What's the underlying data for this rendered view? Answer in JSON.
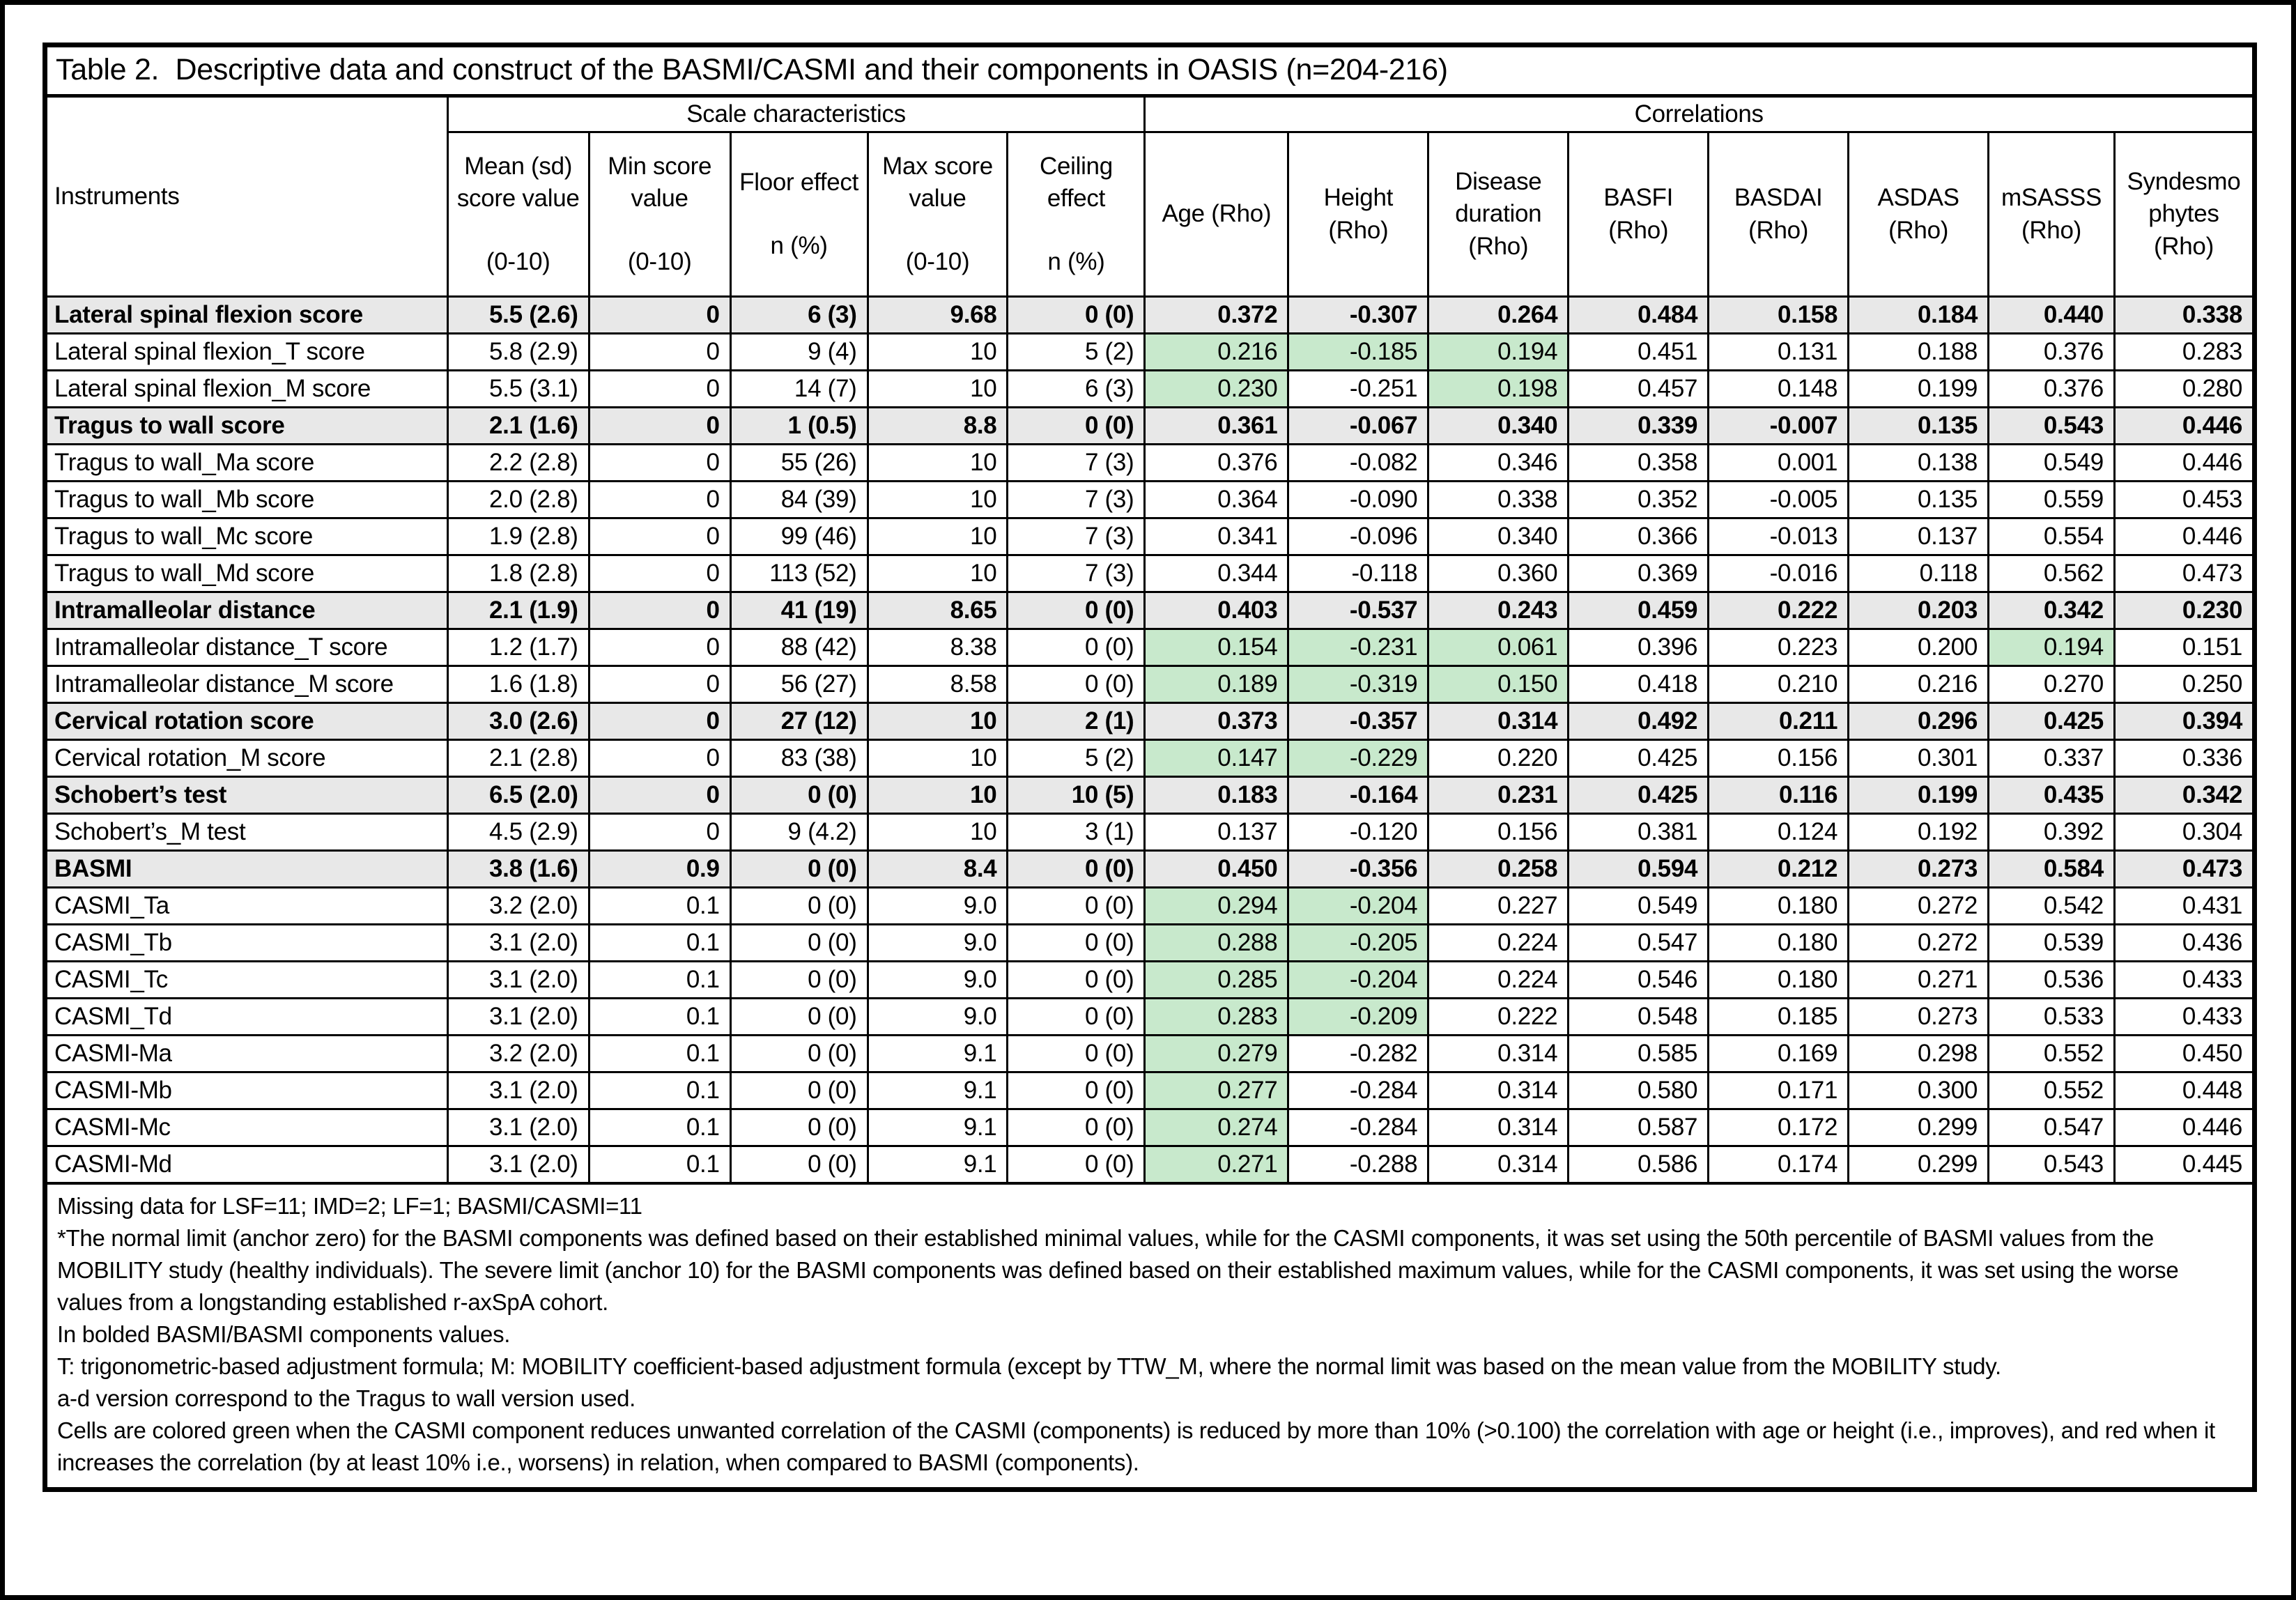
{
  "title": "Table 2.  Descriptive data and construct of the BASMI/CASMI and their components in OASIS (n=204-216)",
  "colors": {
    "improved_cell_green": "#c8e9cc",
    "bold_row_gray": "#e8e8e8",
    "border_black": "#000000"
  },
  "header": {
    "instruments": "Instruments",
    "groups": [
      {
        "label": "Scale characteristics",
        "span": 5
      },
      {
        "label": "Correlations",
        "span": 8
      }
    ],
    "columns": [
      {
        "label": "Mean (sd) score value",
        "sub": "(0-10)"
      },
      {
        "label": "Min score value",
        "sub": "(0-10)"
      },
      {
        "label": "Floor effect",
        "sub": "n (%)"
      },
      {
        "label": "Max score value",
        "sub": "(0-10)"
      },
      {
        "label": "Ceiling effect",
        "sub": "n (%)"
      },
      {
        "label": "Age (Rho)",
        "sub": ""
      },
      {
        "label": "Height (Rho)",
        "sub": ""
      },
      {
        "label": "Disease duration (Rho)",
        "sub": ""
      },
      {
        "label": "BASFI (Rho)",
        "sub": ""
      },
      {
        "label": "BASDAI (Rho)",
        "sub": ""
      },
      {
        "label": "ASDAS (Rho)",
        "sub": ""
      },
      {
        "label": "mSASSS (Rho)",
        "sub": ""
      },
      {
        "label": "Syndesmo phytes (Rho)",
        "sub": ""
      }
    ]
  },
  "rows": [
    {
      "label": "Lateral spinal flexion score",
      "bold": true,
      "green": [],
      "cells": [
        "5.5 (2.6)",
        "0",
        "6 (3)",
        "9.68",
        "0 (0)",
        "0.372",
        "-0.307",
        "0.264",
        "0.484",
        "0.158",
        "0.184",
        "0.440",
        "0.338"
      ]
    },
    {
      "label": "Lateral spinal flexion_T score",
      "bold": false,
      "green": [
        5,
        6,
        7
      ],
      "cells": [
        "5.8 (2.9)",
        "0",
        "9 (4)",
        "10",
        "5 (2)",
        "0.216",
        "-0.185",
        "0.194",
        "0.451",
        "0.131",
        "0.188",
        "0.376",
        "0.283"
      ]
    },
    {
      "label": "Lateral spinal flexion_M score",
      "bold": false,
      "green": [
        5,
        7
      ],
      "cells": [
        "5.5 (3.1)",
        "0",
        "14 (7)",
        "10",
        "6 (3)",
        "0.230",
        "-0.251",
        "0.198",
        "0.457",
        "0.148",
        "0.199",
        "0.376",
        "0.280"
      ]
    },
    {
      "label": "Tragus to wall score",
      "bold": true,
      "green": [],
      "cells": [
        "2.1 (1.6)",
        "0",
        "1 (0.5)",
        "8.8",
        "0 (0)",
        "0.361",
        "-0.067",
        "0.340",
        "0.339",
        "-0.007",
        "0.135",
        "0.543",
        "0.446"
      ]
    },
    {
      "label": "Tragus to wall_Ma score",
      "bold": false,
      "green": [],
      "cells": [
        "2.2 (2.8)",
        "0",
        "55 (26)",
        "10",
        "7 (3)",
        "0.376",
        "-0.082",
        "0.346",
        "0.358",
        "0.001",
        "0.138",
        "0.549",
        "0.446"
      ]
    },
    {
      "label": "Tragus to wall_Mb score",
      "bold": false,
      "green": [],
      "cells": [
        "2.0 (2.8)",
        "0",
        "84 (39)",
        "10",
        "7 (3)",
        "0.364",
        "-0.090",
        "0.338",
        "0.352",
        "-0.005",
        "0.135",
        "0.559",
        "0.453"
      ]
    },
    {
      "label": "Tragus to wall_Mc score",
      "bold": false,
      "green": [],
      "cells": [
        "1.9 (2.8)",
        "0",
        "99 (46)",
        "10",
        "7 (3)",
        "0.341",
        "-0.096",
        "0.340",
        "0.366",
        "-0.013",
        "0.137",
        "0.554",
        "0.446"
      ]
    },
    {
      "label": "Tragus to wall_Md score",
      "bold": false,
      "green": [],
      "cells": [
        "1.8 (2.8)",
        "0",
        "113 (52)",
        "10",
        "7 (3)",
        "0.344",
        "-0.118",
        "0.360",
        "0.369",
        "-0.016",
        "0.118",
        "0.562",
        "0.473"
      ]
    },
    {
      "label": "Intramalleolar distance",
      "bold": true,
      "green": [],
      "cells": [
        "2.1 (1.9)",
        "0",
        "41 (19)",
        "8.65",
        "0 (0)",
        "0.403",
        "-0.537",
        "0.243",
        "0.459",
        "0.222",
        "0.203",
        "0.342",
        "0.230"
      ]
    },
    {
      "label": "Intramalleolar distance_T score",
      "bold": false,
      "green": [
        5,
        6,
        7,
        11
      ],
      "cells": [
        "1.2 (1.7)",
        "0",
        "88 (42)",
        "8.38",
        "0 (0)",
        "0.154",
        "-0.231",
        "0.061",
        "0.396",
        "0.223",
        "0.200",
        "0.194",
        "0.151"
      ]
    },
    {
      "label": "Intramalleolar distance_M score",
      "bold": false,
      "green": [
        5,
        6,
        7
      ],
      "cells": [
        "1.6 (1.8)",
        "0",
        "56 (27)",
        "8.58",
        "0 (0)",
        "0.189",
        "-0.319",
        "0.150",
        "0.418",
        "0.210",
        "0.216",
        "0.270",
        "0.250"
      ]
    },
    {
      "label": "Cervical rotation score",
      "bold": true,
      "green": [],
      "cells": [
        "3.0 (2.6)",
        "0",
        "27 (12)",
        "10",
        "2 (1)",
        "0.373",
        "-0.357",
        "0.314",
        "0.492",
        "0.211",
        "0.296",
        "0.425",
        "0.394"
      ]
    },
    {
      "label": "Cervical rotation_M score",
      "bold": false,
      "green": [
        5,
        6
      ],
      "cells": [
        "2.1 (2.8)",
        "0",
        "83 (38)",
        "10",
        "5 (2)",
        "0.147",
        "-0.229",
        "0.220",
        "0.425",
        "0.156",
        "0.301",
        "0.337",
        "0.336"
      ]
    },
    {
      "label": "Schobert’s test",
      "bold": true,
      "green": [],
      "cells": [
        "6.5 (2.0)",
        "0",
        "0 (0)",
        "10",
        "10 (5)",
        "0.183",
        "-0.164",
        "0.231",
        "0.425",
        "0.116",
        "0.199",
        "0.435",
        "0.342"
      ]
    },
    {
      "label": "Schobert’s_M  test",
      "bold": false,
      "green": [],
      "cells": [
        "4.5 (2.9)",
        "0",
        "9 (4.2)",
        "10",
        "3 (1)",
        "0.137",
        "-0.120",
        "0.156",
        "0.381",
        "0.124",
        "0.192",
        "0.392",
        "0.304"
      ]
    },
    {
      "label": "BASMI",
      "bold": true,
      "green": [],
      "cells": [
        "3.8 (1.6)",
        "0.9",
        "0 (0)",
        "8.4",
        "0 (0)",
        "0.450",
        "-0.356",
        "0.258",
        "0.594",
        "0.212",
        "0.273",
        "0.584",
        "0.473"
      ]
    },
    {
      "label": "CASMI_Ta",
      "bold": false,
      "green": [
        5,
        6
      ],
      "cells": [
        "3.2 (2.0)",
        "0.1",
        "0 (0)",
        "9.0",
        "0 (0)",
        "0.294",
        "-0.204",
        "0.227",
        "0.549",
        "0.180",
        "0.272",
        "0.542",
        "0.431"
      ]
    },
    {
      "label": "CASMI_Tb",
      "bold": false,
      "green": [
        5,
        6
      ],
      "cells": [
        "3.1 (2.0)",
        "0.1",
        "0 (0)",
        "9.0",
        "0 (0)",
        "0.288",
        "-0.205",
        "0.224",
        "0.547",
        "0.180",
        "0.272",
        "0.539",
        "0.436"
      ]
    },
    {
      "label": "CASMI_Tc",
      "bold": false,
      "green": [
        5,
        6
      ],
      "cells": [
        "3.1 (2.0)",
        "0.1",
        "0 (0)",
        "9.0",
        "0 (0)",
        "0.285",
        "-0.204",
        "0.224",
        "0.546",
        "0.180",
        "0.271",
        "0.536",
        "0.433"
      ]
    },
    {
      "label": "CASMI_Td",
      "bold": false,
      "green": [
        5,
        6
      ],
      "cells": [
        "3.1 (2.0)",
        "0.1",
        "0 (0)",
        "9.0",
        "0 (0)",
        "0.283",
        "-0.209",
        "0.222",
        "0.548",
        "0.185",
        "0.273",
        "0.533",
        "0.433"
      ]
    },
    {
      "label": "CASMI-Ma",
      "bold": false,
      "green": [
        5
      ],
      "cells": [
        "3.2 (2.0)",
        "0.1",
        "0 (0)",
        "9.1",
        "0 (0)",
        "0.279",
        "-0.282",
        "0.314",
        "0.585",
        "0.169",
        "0.298",
        "0.552",
        "0.450"
      ]
    },
    {
      "label": "CASMI-Mb",
      "bold": false,
      "green": [
        5
      ],
      "cells": [
        "3.1 (2.0)",
        "0.1",
        "0 (0)",
        "9.1",
        "0 (0)",
        "0.277",
        "-0.284",
        "0.314",
        "0.580",
        "0.171",
        "0.300",
        "0.552",
        "0.448"
      ]
    },
    {
      "label": "CASMI-Mc",
      "bold": false,
      "green": [
        5
      ],
      "cells": [
        "3.1 (2.0)",
        "0.1",
        "0 (0)",
        "9.1",
        "0 (0)",
        "0.274",
        "-0.284",
        "0.314",
        "0.587",
        "0.172",
        "0.299",
        "0.547",
        "0.446"
      ]
    },
    {
      "label": "CASMI-Md",
      "bold": false,
      "green": [
        5
      ],
      "cells": [
        "3.1 (2.0)",
        "0.1",
        "0 (0)",
        "9.1",
        "0 (0)",
        "0.271",
        "-0.288",
        "0.314",
        "0.586",
        "0.174",
        "0.299",
        "0.543",
        "0.445"
      ]
    }
  ],
  "footnotes": [
    "Missing data for LSF=11; IMD=2; LF=1; BASMI/CASMI=11",
    "*The normal limit (anchor zero) for the BASMI components was defined based on their established minimal values, while for the CASMI components, it was set using the 50th percentile of BASMI values from the MOBILITY study (healthy individuals). The severe limit (anchor 10) for the BASMI components was defined based on their established maximum values, while for the CASMI components, it was set using the worse values from a longstanding established r-axSpA cohort.",
    "In bolded BASMI/BASMI components values.",
    "T: trigonometric-based adjustment formula; M: MOBILITY coefficient-based adjustment formula (except by TTW_M, where the normal limit was based on the mean value from the MOBILITY study.",
    "a-d version correspond to the Tragus to wall version used.",
    "Cells are colored green when the CASMI component reduces unwanted correlation of the CASMI (components) is reduced by more than 10% (>0.100) the correlation with age or height (i.e., improves), and red when it increases the correlation (by at least 10% i.e., worsens) in relation, when compared to BASMI (components)."
  ]
}
